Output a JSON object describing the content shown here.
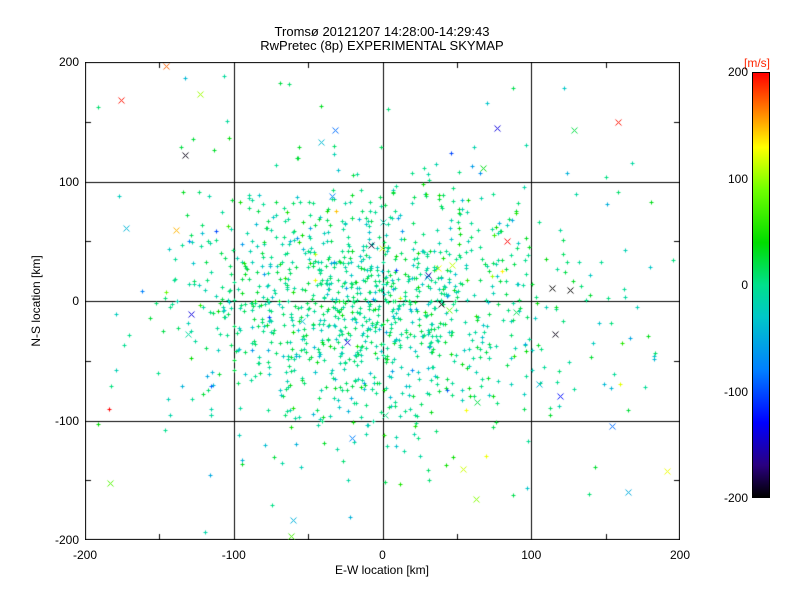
{
  "chart_data": {
    "type": "scatter",
    "title": "Tromsø 20121207 14:28:00-14:29:43",
    "subtitle": "RwPretec (8p) EXPERIMENTAL SKYMAP",
    "xlabel": "E-W location [km]",
    "ylabel": "N-S location [km]",
    "xlim": [
      -200,
      200
    ],
    "ylim": [
      -200,
      200
    ],
    "xticks": [
      -200,
      -100,
      0,
      100,
      200
    ],
    "yticks": [
      -200,
      -100,
      0,
      100,
      200
    ],
    "minor_tick_step": 50,
    "grid": true,
    "axis_color": "#000000",
    "marker_default": "+",
    "colorbar": {
      "label": "[m/s]",
      "label_color": "#ff2400",
      "range": [
        -200,
        200
      ],
      "ticks": [
        200,
        100,
        0,
        -100,
        -200
      ],
      "stops": [
        [
          -200,
          "#000000"
        ],
        [
          -170,
          "#2a0080"
        ],
        [
          -130,
          "#0000ff"
        ],
        [
          -80,
          "#0080ff"
        ],
        [
          -30,
          "#00c8c8"
        ],
        [
          0,
          "#00e08c"
        ],
        [
          40,
          "#00dc00"
        ],
        [
          90,
          "#70ff00"
        ],
        [
          130,
          "#ffff00"
        ],
        [
          160,
          "#ff9000"
        ],
        [
          200,
          "#ff0000"
        ]
      ]
    },
    "point_cloud": {
      "seed": 20121207,
      "core": {
        "count": 1050,
        "cx": -12,
        "cy": -4,
        "sx": 62,
        "sy": 50,
        "v_mean": 0,
        "v_sigma": 18,
        "v_wide_frac": 0.04,
        "v_wide_sigma": 85,
        "marker": "+",
        "size": 2
      },
      "halo": {
        "count": 240,
        "cx": -5,
        "cy": -10,
        "sx": 115,
        "sy": 92,
        "v_mean": 0,
        "v_sigma": 35,
        "v_wide_frac": 0.08,
        "v_wide_sigma": 95,
        "marker": "+",
        "size": 2
      },
      "cross": {
        "count": 42,
        "cx": 0,
        "cy": 0,
        "sx": 120,
        "sy": 100,
        "v_uniform": [
          -210,
          210
        ],
        "marker": "x",
        "size": 3
      }
    },
    "notable_points": [
      {
        "x": 158,
        "y": 150,
        "v": 195,
        "marker": "x"
      },
      {
        "x": 84,
        "y": 50,
        "v": 200,
        "marker": "x"
      },
      {
        "x": 114,
        "y": 11,
        "v": -200,
        "marker": "x"
      },
      {
        "x": 126,
        "y": 9,
        "v": -200,
        "marker": "x"
      },
      {
        "x": -133,
        "y": 122,
        "v": -195,
        "marker": "x"
      },
      {
        "x": -176,
        "y": 168,
        "v": 195,
        "marker": "x"
      },
      {
        "x": -139,
        "y": 59,
        "v": 150,
        "marker": "x"
      },
      {
        "x": 37,
        "y": 28,
        "v": 125,
        "marker": "x"
      },
      {
        "x": 165,
        "y": -160,
        "v": -50,
        "marker": "x"
      },
      {
        "x": -184,
        "y": -90,
        "v": 200,
        "marker": "+"
      },
      {
        "x": 116,
        "y": -28,
        "v": -195,
        "marker": "x"
      },
      {
        "x": 77,
        "y": 145,
        "v": -140,
        "marker": "x"
      },
      {
        "x": 122,
        "y": 178,
        "v": -30,
        "marker": "+"
      },
      {
        "x": -63,
        "y": 182,
        "v": 10,
        "marker": "+"
      }
    ]
  }
}
